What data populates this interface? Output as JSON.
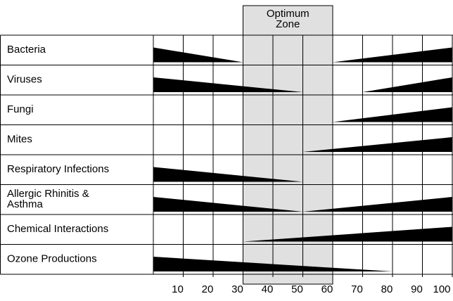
{
  "zone": {
    "label": [
      "Optimum",
      "Zone"
    ],
    "start": 30,
    "end": 60,
    "color": "#e0e0e0"
  },
  "axis": {
    "xlim": [
      0,
      100
    ],
    "xticks": [
      10,
      20,
      30,
      40,
      50,
      60,
      70,
      80,
      90,
      100
    ]
  },
  "wedge_color": "#000000",
  "rows": [
    {
      "label": [
        "Bacteria"
      ],
      "wedges": [
        {
          "start": 0,
          "end": 30,
          "thick": "start"
        },
        {
          "start": 60,
          "end": 100,
          "thick": "end"
        }
      ]
    },
    {
      "label": [
        "Viruses"
      ],
      "wedges": [
        {
          "start": 0,
          "end": 50,
          "thick": "start"
        },
        {
          "start": 70,
          "end": 100,
          "thick": "end"
        }
      ]
    },
    {
      "label": [
        "Fungi"
      ],
      "wedges": [
        {
          "start": 60,
          "end": 100,
          "thick": "end"
        }
      ]
    },
    {
      "label": [
        "Mites"
      ],
      "wedges": [
        {
          "start": 50,
          "end": 100,
          "thick": "end"
        }
      ]
    },
    {
      "label": [
        "Respiratory Infections"
      ],
      "wedges": [
        {
          "start": 0,
          "end": 50,
          "thick": "start"
        }
      ]
    },
    {
      "label": [
        "Allergic Rhinitis &",
        "Asthma"
      ],
      "wedges": [
        {
          "start": 0,
          "end": 50,
          "thick": "start"
        },
        {
          "start": 50,
          "end": 100,
          "thick": "end"
        }
      ]
    },
    {
      "label": [
        "Chemical Interactions"
      ],
      "wedges": [
        {
          "start": 30,
          "end": 100,
          "thick": "end"
        }
      ]
    },
    {
      "label": [
        "Ozone Productions"
      ],
      "wedges": [
        {
          "start": 0,
          "end": 80,
          "thick": "start"
        }
      ]
    }
  ]
}
